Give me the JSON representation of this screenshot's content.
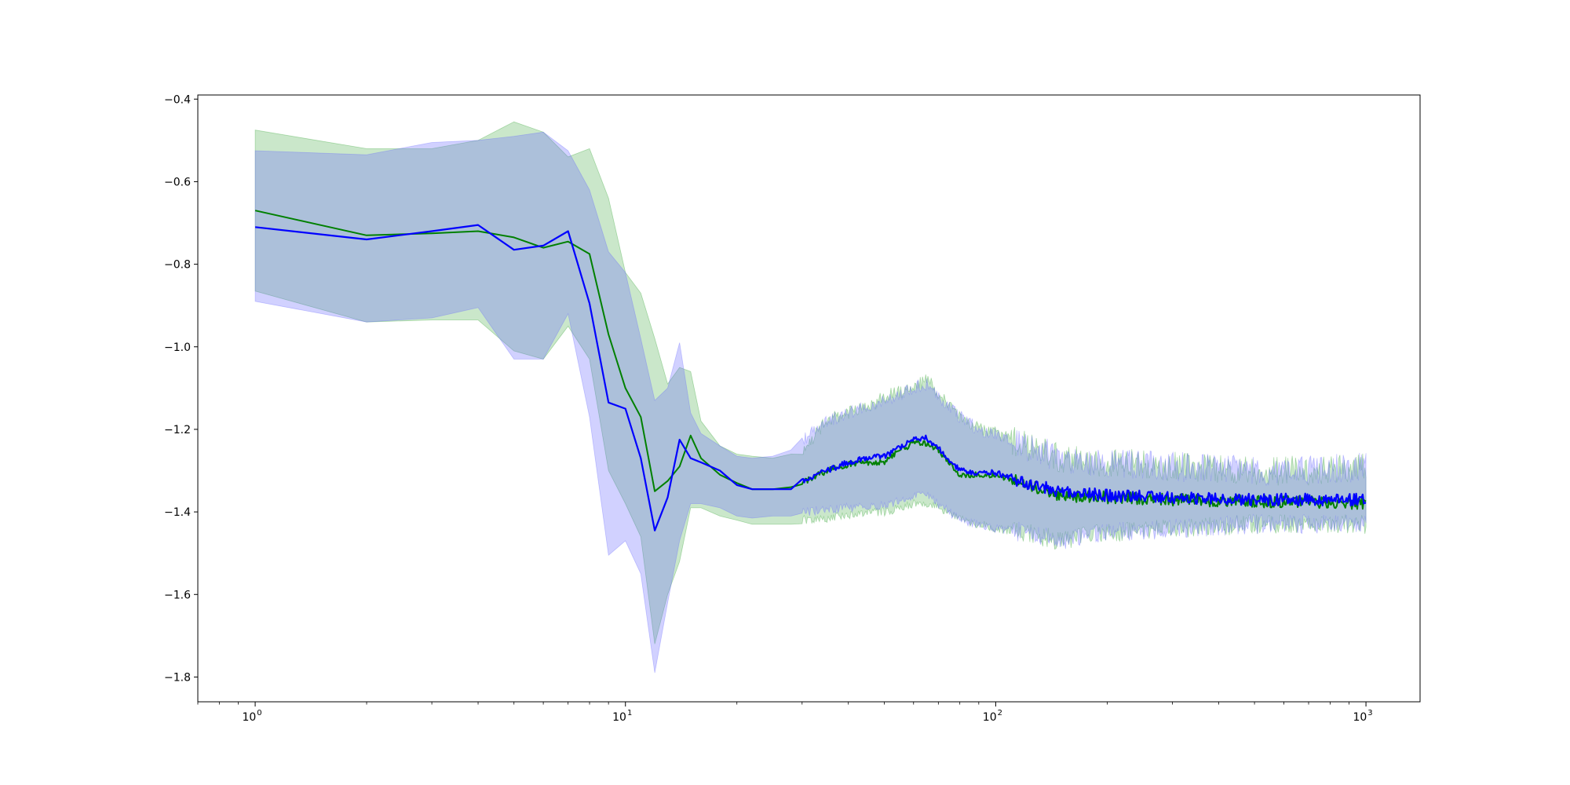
{
  "chart_data": {
    "type": "line",
    "title": "",
    "xlabel": "",
    "ylabel": "",
    "xscale": "log",
    "xlim": [
      0.7,
      1400
    ],
    "ylim": [
      -1.86,
      -0.39
    ],
    "grid": false,
    "legend": "none",
    "x_ticks": [
      {
        "value": 1,
        "base": "10",
        "exp": "0"
      },
      {
        "value": 10,
        "base": "10",
        "exp": "1"
      },
      {
        "value": 100,
        "base": "10",
        "exp": "2"
      },
      {
        "value": 1000,
        "base": "10",
        "exp": "3"
      }
    ],
    "y_ticks": [
      {
        "value": -0.4,
        "label": "−0.4"
      },
      {
        "value": -0.6,
        "label": "−0.6"
      },
      {
        "value": -0.8,
        "label": "−0.8"
      },
      {
        "value": -1.0,
        "label": "−1.0"
      },
      {
        "value": -1.2,
        "label": "−1.2"
      },
      {
        "value": -1.4,
        "label": "−1.4"
      },
      {
        "value": -1.6,
        "label": "−1.6"
      },
      {
        "value": -1.8,
        "label": "−1.8"
      }
    ],
    "series": [
      {
        "color": "#008000",
        "band_color": "#2ca02c",
        "x": [
          1,
          2,
          3,
          4,
          5,
          6,
          7,
          8,
          9,
          10,
          11,
          12,
          13,
          14,
          15,
          16,
          18,
          20,
          22,
          25,
          28,
          30,
          35,
          40,
          45,
          50,
          55,
          60,
          65,
          70,
          80,
          90,
          100,
          120,
          150,
          200,
          300,
          500,
          700,
          1000
        ],
        "values": [
          -0.67,
          -0.73,
          -0.725,
          -0.72,
          -0.735,
          -0.76,
          -0.745,
          -0.775,
          -0.97,
          -1.1,
          -1.17,
          -1.35,
          -1.325,
          -1.29,
          -1.215,
          -1.27,
          -1.31,
          -1.33,
          -1.345,
          -1.345,
          -1.34,
          -1.33,
          -1.3,
          -1.285,
          -1.28,
          -1.28,
          -1.25,
          -1.235,
          -1.235,
          -1.25,
          -1.31,
          -1.31,
          -1.31,
          -1.33,
          -1.36,
          -1.365,
          -1.37,
          -1.375,
          -1.375,
          -1.38
        ],
        "upper": [
          -0.475,
          -0.52,
          -0.52,
          -0.5,
          -0.455,
          -0.48,
          -0.54,
          -0.52,
          -0.64,
          -0.82,
          -0.87,
          -0.98,
          -1.09,
          -1.05,
          -1.06,
          -1.18,
          -1.24,
          -1.26,
          -1.265,
          -1.27,
          -1.26,
          -1.25,
          -1.18,
          -1.16,
          -1.15,
          -1.12,
          -1.11,
          -1.1,
          -1.08,
          -1.11,
          -1.17,
          -1.2,
          -1.21,
          -1.24,
          -1.27,
          -1.28,
          -1.29,
          -1.3,
          -1.3,
          -1.29
        ],
        "lower": [
          -0.865,
          -0.94,
          -0.935,
          -0.935,
          -1.01,
          -1.03,
          -0.95,
          -1.03,
          -1.3,
          -1.38,
          -1.46,
          -1.72,
          -1.6,
          -1.52,
          -1.39,
          -1.39,
          -1.41,
          -1.42,
          -1.43,
          -1.43,
          -1.43,
          -1.42,
          -1.415,
          -1.41,
          -1.4,
          -1.4,
          -1.39,
          -1.38,
          -1.38,
          -1.39,
          -1.42,
          -1.43,
          -1.44,
          -1.45,
          -1.47,
          -1.45,
          -1.44,
          -1.43,
          -1.43,
          -1.43
        ]
      },
      {
        "color": "#0000ff",
        "band_color": "#6666ff",
        "x": [
          1,
          2,
          3,
          4,
          5,
          6,
          7,
          8,
          9,
          10,
          11,
          12,
          13,
          14,
          15,
          16,
          18,
          20,
          22,
          25,
          28,
          30,
          35,
          40,
          45,
          50,
          55,
          60,
          65,
          70,
          80,
          90,
          100,
          120,
          150,
          200,
          300,
          500,
          700,
          1000
        ],
        "values": [
          -0.71,
          -0.74,
          -0.72,
          -0.705,
          -0.765,
          -0.755,
          -0.72,
          -0.895,
          -1.135,
          -1.15,
          -1.27,
          -1.445,
          -1.365,
          -1.225,
          -1.27,
          -1.28,
          -1.3,
          -1.335,
          -1.345,
          -1.345,
          -1.345,
          -1.325,
          -1.3,
          -1.28,
          -1.27,
          -1.265,
          -1.245,
          -1.225,
          -1.22,
          -1.245,
          -1.3,
          -1.305,
          -1.305,
          -1.33,
          -1.35,
          -1.36,
          -1.365,
          -1.37,
          -1.37,
          -1.37
        ],
        "upper": [
          -0.525,
          -0.535,
          -0.505,
          -0.5,
          -0.49,
          -0.48,
          -0.525,
          -0.62,
          -0.77,
          -0.82,
          -0.98,
          -1.13,
          -1.1,
          -0.99,
          -1.16,
          -1.21,
          -1.24,
          -1.265,
          -1.27,
          -1.265,
          -1.25,
          -1.23,
          -1.18,
          -1.16,
          -1.14,
          -1.13,
          -1.12,
          -1.1,
          -1.09,
          -1.12,
          -1.17,
          -1.2,
          -1.21,
          -1.24,
          -1.27,
          -1.28,
          -1.29,
          -1.3,
          -1.3,
          -1.29
        ],
        "lower": [
          -0.89,
          -0.94,
          -0.93,
          -0.905,
          -1.03,
          -1.03,
          -0.92,
          -1.17,
          -1.505,
          -1.47,
          -1.55,
          -1.79,
          -1.62,
          -1.47,
          -1.38,
          -1.38,
          -1.39,
          -1.41,
          -1.415,
          -1.41,
          -1.41,
          -1.4,
          -1.395,
          -1.39,
          -1.385,
          -1.385,
          -1.375,
          -1.36,
          -1.36,
          -1.38,
          -1.42,
          -1.43,
          -1.44,
          -1.45,
          -1.47,
          -1.45,
          -1.44,
          -1.43,
          -1.43,
          -1.43
        ]
      }
    ]
  }
}
